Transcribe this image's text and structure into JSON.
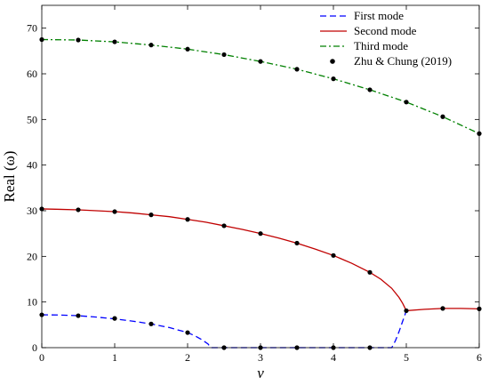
{
  "chart_data": {
    "type": "line",
    "xlabel": "v",
    "ylabel": "Real (ω)",
    "xlim": [
      0,
      6
    ],
    "ylim": [
      0,
      75
    ],
    "xticks": [
      0,
      1,
      2,
      3,
      4,
      5,
      6
    ],
    "yticks": [
      0,
      10,
      20,
      30,
      40,
      50,
      60,
      70
    ],
    "grid": false,
    "legend_position": "top-right",
    "series": [
      {
        "name": "First mode",
        "style": "dashed",
        "color": "#0000ff",
        "x": [
          0,
          0.25,
          0.5,
          0.75,
          1.0,
          1.25,
          1.5,
          1.75,
          2.0,
          2.1,
          2.2,
          2.28,
          2.32,
          2.5,
          3.0,
          3.5,
          4.0,
          4.5,
          4.8,
          4.85,
          4.9,
          4.95,
          4.99,
          5.0
        ],
        "y": [
          7.2,
          7.15,
          7.0,
          6.7,
          6.3,
          5.8,
          5.2,
          4.4,
          3.3,
          2.6,
          1.7,
          0.8,
          0,
          0,
          0,
          0,
          0,
          0,
          0,
          1.5,
          3.5,
          5.8,
          7.6,
          8.1
        ]
      },
      {
        "name": "Second mode",
        "style": "solid",
        "color": "#c00000",
        "x": [
          0,
          0.25,
          0.5,
          0.75,
          1.0,
          1.25,
          1.5,
          1.75,
          2.0,
          2.25,
          2.5,
          2.75,
          3.0,
          3.25,
          3.5,
          3.75,
          4.0,
          4.25,
          4.5,
          4.65,
          4.8,
          4.9,
          4.95,
          5.0,
          5.25,
          5.5,
          5.75,
          6.0
        ],
        "y": [
          30.4,
          30.3,
          30.2,
          30.0,
          29.8,
          29.5,
          29.1,
          28.7,
          28.1,
          27.5,
          26.7,
          25.9,
          25.0,
          24.0,
          22.9,
          21.6,
          20.2,
          18.5,
          16.5,
          15.0,
          13.0,
          11.0,
          9.7,
          8.1,
          8.4,
          8.6,
          8.6,
          8.5
        ]
      },
      {
        "name": "Third mode",
        "style": "dashdot",
        "color": "#008000",
        "x": [
          0,
          0.5,
          1.0,
          1.5,
          2.0,
          2.5,
          3.0,
          3.5,
          4.0,
          4.5,
          5.0,
          5.5,
          6.0
        ],
        "y": [
          67.5,
          67.4,
          67.0,
          66.3,
          65.4,
          64.2,
          62.7,
          61.0,
          58.9,
          56.5,
          53.8,
          50.6,
          46.9
        ]
      },
      {
        "name": "Zhu & Chung (2019)",
        "style": "markers",
        "color": "#000000",
        "points": [
          [
            0,
            7.2
          ],
          [
            0.5,
            7.0
          ],
          [
            1.0,
            6.4
          ],
          [
            1.5,
            5.2
          ],
          [
            2.0,
            3.3
          ],
          [
            2.5,
            0
          ],
          [
            3.0,
            0
          ],
          [
            3.5,
            0
          ],
          [
            4.0,
            0
          ],
          [
            4.5,
            0
          ],
          [
            0,
            30.4
          ],
          [
            0.5,
            30.2
          ],
          [
            1.0,
            29.8
          ],
          [
            1.5,
            29.1
          ],
          [
            2.0,
            28.1
          ],
          [
            2.5,
            26.7
          ],
          [
            3.0,
            25.0
          ],
          [
            3.5,
            22.9
          ],
          [
            4.0,
            20.2
          ],
          [
            4.5,
            16.5
          ],
          [
            5.0,
            8.1
          ],
          [
            5.5,
            8.6
          ],
          [
            6.0,
            8.5
          ],
          [
            0,
            67.5
          ],
          [
            0.5,
            67.4
          ],
          [
            1.0,
            67.0
          ],
          [
            1.5,
            66.3
          ],
          [
            2.0,
            65.4
          ],
          [
            2.5,
            64.2
          ],
          [
            3.0,
            62.7
          ],
          [
            3.5,
            61.0
          ],
          [
            4.0,
            58.9
          ],
          [
            4.5,
            56.5
          ],
          [
            5.0,
            53.8
          ],
          [
            5.5,
            50.6
          ],
          [
            6.0,
            46.9
          ]
        ]
      }
    ]
  }
}
